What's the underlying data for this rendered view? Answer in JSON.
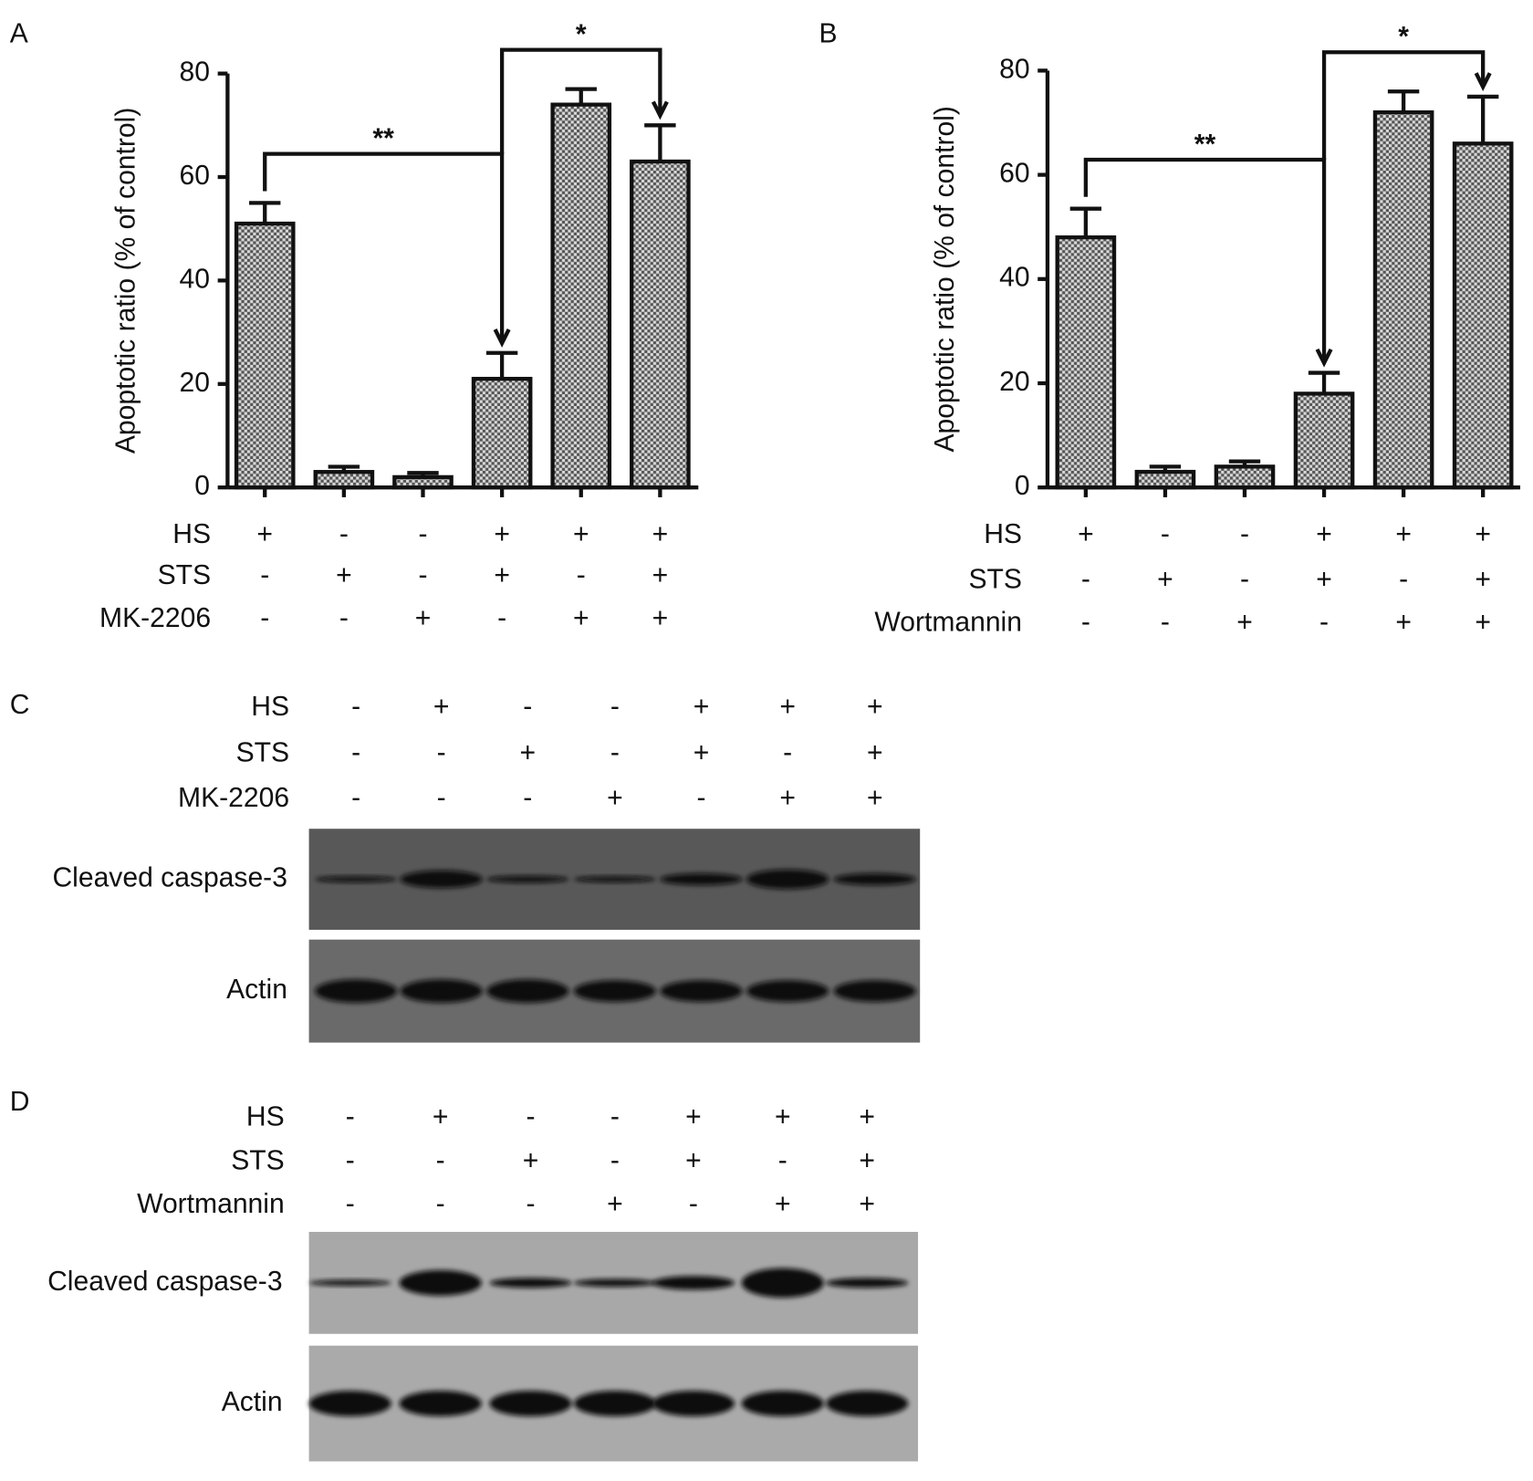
{
  "chart_data": [
    {
      "type": "bar",
      "panel": "A",
      "ylabel": "Apoptotic ratio (% of control)",
      "values": [
        51,
        3,
        2,
        21,
        74,
        63
      ],
      "errors": [
        4,
        1,
        0.8,
        5,
        3,
        7
      ],
      "ylim": [
        0,
        80
      ],
      "yticks": [
        0,
        20,
        40,
        60,
        80
      ],
      "color": "#8a8a8a",
      "annotations": [
        "**",
        "*"
      ],
      "conditions": [
        {
          "name": "HS",
          "signs": [
            "+",
            "-",
            "-",
            "+",
            "+",
            "+"
          ]
        },
        {
          "name": "STS",
          "signs": [
            "-",
            "+",
            "-",
            "+",
            "-",
            "+"
          ]
        },
        {
          "name": "MK-2206",
          "signs": [
            "-",
            "-",
            "+",
            "-",
            "+",
            "+"
          ]
        }
      ]
    },
    {
      "type": "bar",
      "panel": "B",
      "ylabel": "Apoptotic ratio (% of control)",
      "values": [
        48,
        3,
        4,
        18,
        72,
        66
      ],
      "errors": [
        5.5,
        1,
        1,
        4,
        4,
        9
      ],
      "ylim": [
        0,
        80
      ],
      "yticks": [
        0,
        20,
        40,
        60,
        80
      ],
      "color": "#8a8a8a",
      "annotations": [
        "**",
        "*"
      ],
      "conditions": [
        {
          "name": "HS",
          "signs": [
            "+",
            "-",
            "-",
            "+",
            "+",
            "+"
          ]
        },
        {
          "name": "STS",
          "signs": [
            "-",
            "+",
            "-",
            "+",
            "-",
            "+"
          ]
        },
        {
          "name": "Wortmannin",
          "signs": [
            "-",
            "-",
            "+",
            "-",
            "+",
            "+"
          ]
        }
      ]
    }
  ],
  "blots": [
    {
      "panel": "C",
      "bands": [
        "Cleaved caspase-3",
        "Actin"
      ],
      "conditions": [
        {
          "name": "HS",
          "signs": [
            "-",
            "+",
            "-",
            "-",
            "+",
            "+",
            "+"
          ]
        },
        {
          "name": "STS",
          "signs": [
            "-",
            "-",
            "+",
            "-",
            "+",
            "-",
            "+"
          ]
        },
        {
          "name": "MK-2206",
          "signs": [
            "-",
            "-",
            "-",
            "+",
            "-",
            "+",
            "+"
          ]
        }
      ]
    },
    {
      "panel": "D",
      "bands": [
        "Cleaved caspase-3",
        "Actin"
      ],
      "conditions": [
        {
          "name": "HS",
          "signs": [
            "-",
            "+",
            "-",
            "-",
            "+",
            "+",
            "+"
          ]
        },
        {
          "name": "STS",
          "signs": [
            "-",
            "-",
            "+",
            "-",
            "+",
            "-",
            "+"
          ]
        },
        {
          "name": "Wortmannin",
          "signs": [
            "-",
            "-",
            "-",
            "+",
            "-",
            "+",
            "+"
          ]
        }
      ]
    }
  ]
}
